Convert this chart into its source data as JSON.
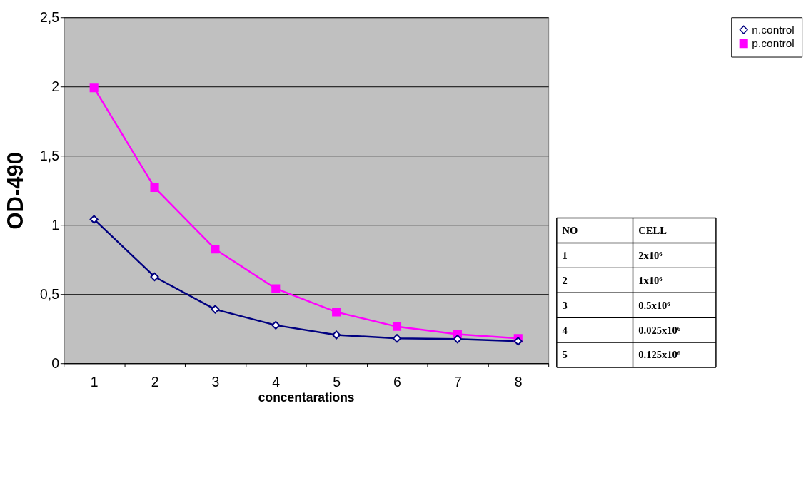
{
  "chart_data": {
    "type": "line",
    "xlabel": "concentarations",
    "ylabel": "OD-490",
    "categories": [
      "1",
      "2",
      "3",
      "4",
      "5",
      "6",
      "7",
      "8"
    ],
    "series": [
      {
        "name": "n.control",
        "color": "#000080",
        "marker": "diamond",
        "values": [
          1.04,
          0.625,
          0.39,
          0.275,
          0.205,
          0.18,
          0.175,
          0.16
        ]
      },
      {
        "name": "p.control",
        "color": "#ff00ff",
        "marker": "square",
        "values": [
          1.99,
          1.27,
          0.825,
          0.54,
          0.37,
          0.265,
          0.21,
          0.18
        ]
      }
    ],
    "ylim": [
      0,
      2.5
    ],
    "yticks": [
      0,
      {
        "value": 0.5,
        "label": "0,5"
      },
      1,
      {
        "value": 1.5,
        "label": "1,5"
      },
      2,
      {
        "value": 2.5,
        "label": "2,5"
      }
    ],
    "grid": "y",
    "legend": "top right",
    "annotations": [
      "NO",
      "CELL",
      "1",
      "2x10⁶",
      "2",
      "1x10⁶",
      "3",
      "0.5x10⁶",
      "4",
      "0.025x10⁶",
      "5",
      "0.125x10⁶"
    ]
  }
}
